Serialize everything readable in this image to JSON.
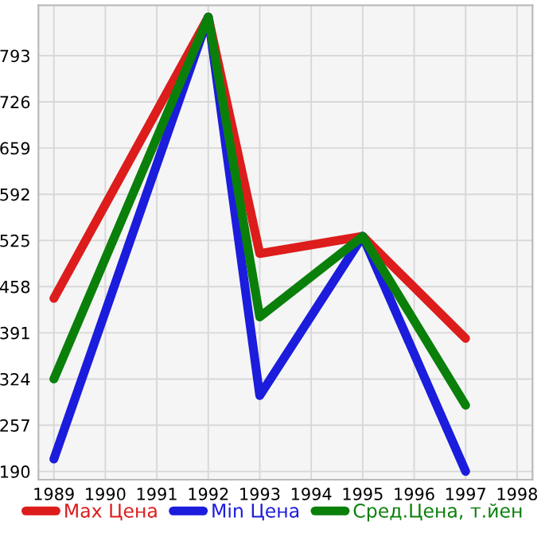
{
  "chart_data": {
    "type": "line",
    "x": [
      1989,
      1992,
      1993,
      1995,
      1997
    ],
    "series": [
      {
        "name": "Max Цена",
        "color": "#dd1c1c",
        "values": [
          441,
          849,
          506,
          531,
          383
        ]
      },
      {
        "name": "Min Цена",
        "color": "#1c1cdd",
        "values": [
          208,
          849,
          300,
          531,
          190
        ]
      },
      {
        "name": "Сред.Цена, т.йен",
        "color": "#0a800a",
        "values": [
          324,
          849,
          414,
          531,
          286
        ]
      }
    ],
    "xlim": [
      1988.7,
      1998.3
    ],
    "xticks": [
      1989,
      1990,
      1991,
      1992,
      1993,
      1994,
      1995,
      1996,
      1997,
      1998
    ],
    "ylim": [
      178,
      866
    ],
    "yticks": [
      190,
      257,
      324,
      391,
      458,
      525,
      592,
      659,
      726,
      793
    ],
    "grid": true,
    "legend": "bottom",
    "marker": "none",
    "line_style": "solid"
  }
}
